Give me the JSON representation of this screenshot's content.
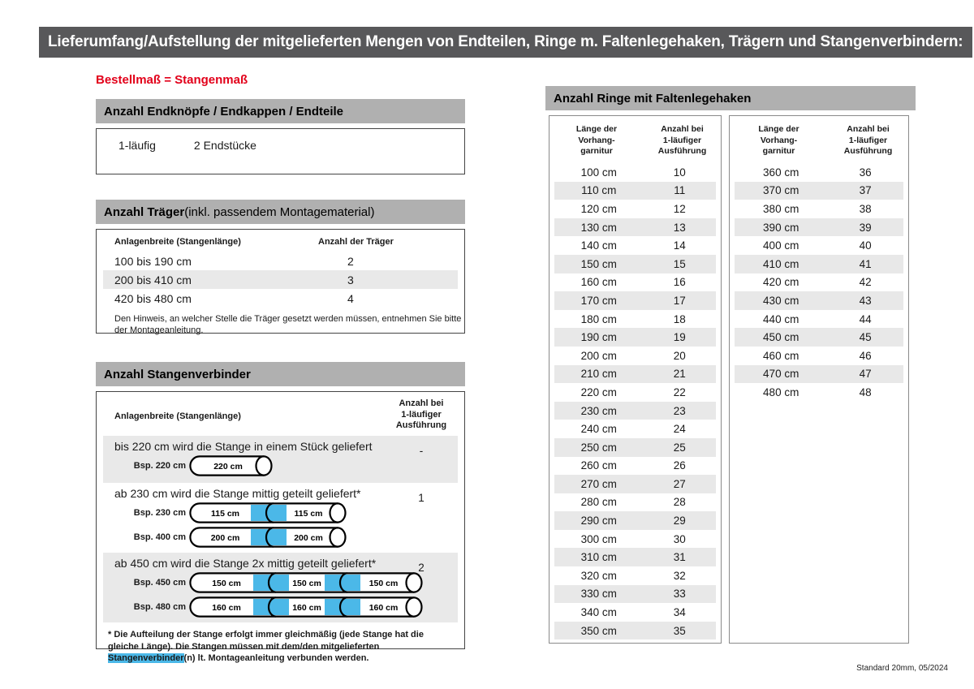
{
  "page": {
    "title_bar": "Lieferumfang/Aufstellung der mitgelieferten Mengen von Endteilen, Ringe m. Faltenlegehaken, Trägern und Stangenverbindern:",
    "subtitle": "Bestellmaß = Stangenmaß",
    "footer": "Standard 20mm, 05/2024"
  },
  "colors": {
    "title_bar_bg": "#58585a",
    "section_header_bg": "#b0b0b0",
    "row_shade": "#e9e9e9",
    "accent_red": "#e2001a",
    "connector_cyan": "#4bb8e8"
  },
  "endteile": {
    "header": "Anzahl Endknöpfe / Endkappen / Endteile",
    "row": {
      "label": "1-läufig",
      "value": "2 Endstücke"
    }
  },
  "traeger": {
    "header_bold": "Anzahl Träger",
    "header_rest": " (inkl. passendem Montagematerial)",
    "col1": "Anlagenbreite (Stangenlänge)",
    "col2": "Anzahl der Träger",
    "rows": [
      {
        "range": "100 bis 190 cm",
        "count": "2"
      },
      {
        "range": "200 bis 410 cm",
        "count": "3"
      },
      {
        "range": "420 bis 480 cm",
        "count": "4"
      }
    ],
    "note": "Den Hinweis, an welcher Stelle die Träger gesetzt werden müssen, entnehmen Sie bitte der Montageanleitung."
  },
  "verbinder": {
    "header": "Anzahl Stangenverbinder",
    "col1": "Anlagenbreite (Stangenlänge)",
    "col2": "Anzahl bei\n1-läufiger\nAusführung",
    "groups": [
      {
        "text": "bis 220 cm wird die Stange in einem Stück geliefert",
        "count": "-",
        "examples": [
          {
            "label": "Bsp. 220 cm",
            "segments": [
              "220 cm"
            ]
          }
        ]
      },
      {
        "text": "ab 230 cm wird die Stange mittig geteilt geliefert*",
        "count": "1",
        "examples": [
          {
            "label": "Bsp. 230 cm",
            "segments": [
              "115 cm",
              "115 cm"
            ]
          },
          {
            "label": "Bsp. 400 cm",
            "segments": [
              "200 cm",
              "200 cm"
            ]
          }
        ]
      },
      {
        "text": "ab 450 cm wird die Stange 2x mittig geteilt geliefert*",
        "count": "2",
        "examples": [
          {
            "label": "Bsp. 450 cm",
            "segments": [
              "150 cm",
              "150 cm",
              "150 cm"
            ]
          },
          {
            "label": "Bsp. 480 cm",
            "segments": [
              "160 cm",
              "160 cm",
              "160 cm"
            ]
          }
        ]
      }
    ],
    "footnote_pre": "* Die Aufteilung der Stange erfolgt immer gleichmäßig (jede Stange hat die gleiche Länge). Die Stangen müssen mit dem/den mitgelieferten ",
    "footnote_highlight": "Stangenverbinder",
    "footnote_post": "(n) lt. Montageanleitung verbunden werden."
  },
  "ringe": {
    "header": "Anzahl Ringe mit Faltenlegehaken",
    "col1": "Länge der\nVorhang-\ngarnitur",
    "col2": "Anzahl bei\n1-läufiger\nAusführung",
    "table1": [
      {
        "len": "100 cm",
        "count": "10"
      },
      {
        "len": "110 cm",
        "count": "11"
      },
      {
        "len": "120 cm",
        "count": "12"
      },
      {
        "len": "130 cm",
        "count": "13"
      },
      {
        "len": "140 cm",
        "count": "14"
      },
      {
        "len": "150 cm",
        "count": "15"
      },
      {
        "len": "160 cm",
        "count": "16"
      },
      {
        "len": "170 cm",
        "count": "17"
      },
      {
        "len": "180 cm",
        "count": "18"
      },
      {
        "len": "190 cm",
        "count": "19"
      },
      {
        "len": "200 cm",
        "count": "20"
      },
      {
        "len": "210 cm",
        "count": "21"
      },
      {
        "len": "220 cm",
        "count": "22"
      },
      {
        "len": "230 cm",
        "count": "23"
      },
      {
        "len": "240 cm",
        "count": "24"
      },
      {
        "len": "250 cm",
        "count": "25"
      },
      {
        "len": "260 cm",
        "count": "26"
      },
      {
        "len": "270 cm",
        "count": "27"
      },
      {
        "len": "280 cm",
        "count": "28"
      },
      {
        "len": "290 cm",
        "count": "29"
      },
      {
        "len": "300 cm",
        "count": "30"
      },
      {
        "len": "310 cm",
        "count": "31"
      },
      {
        "len": "320 cm",
        "count": "32"
      },
      {
        "len": "330 cm",
        "count": "33"
      },
      {
        "len": "340 cm",
        "count": "34"
      },
      {
        "len": "350 cm",
        "count": "35"
      }
    ],
    "table2": [
      {
        "len": "360 cm",
        "count": "36"
      },
      {
        "len": "370 cm",
        "count": "37"
      },
      {
        "len": "380 cm",
        "count": "38"
      },
      {
        "len": "390 cm",
        "count": "39"
      },
      {
        "len": "400 cm",
        "count": "40"
      },
      {
        "len": "410 cm",
        "count": "41"
      },
      {
        "len": "420 cm",
        "count": "42"
      },
      {
        "len": "430 cm",
        "count": "43"
      },
      {
        "len": "440 cm",
        "count": "44"
      },
      {
        "len": "450 cm",
        "count": "45"
      },
      {
        "len": "460 cm",
        "count": "46"
      },
      {
        "len": "470 cm",
        "count": "47"
      },
      {
        "len": "480 cm",
        "count": "48"
      }
    ]
  }
}
